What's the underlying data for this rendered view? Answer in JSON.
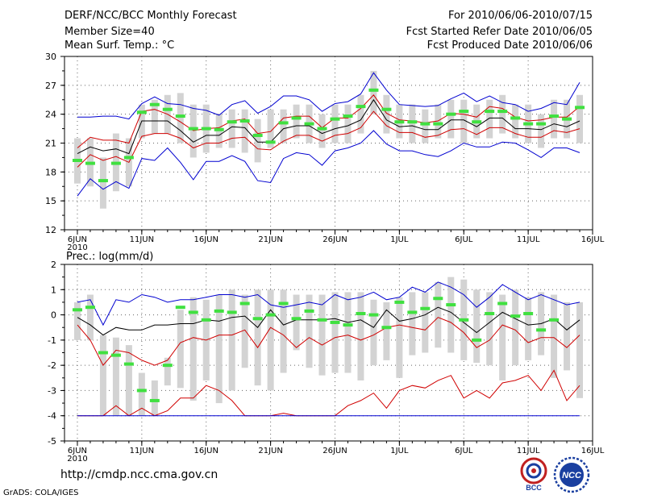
{
  "header": {
    "title": "DERF/NCC/BCC Monthly Forecast",
    "member_size": "Member Size=40",
    "variable1": "Mean Surf. Temp.: °C",
    "period": "For 2010/06/06-2010/07/15",
    "start_date": "Fcst Started Refer Date 2010/06/05",
    "produced_date": "Fcst Produced Date 2010/06/06"
  },
  "footer": {
    "url": "http://cmdp.ncc.cma.gov.cn",
    "grads": "GrADS: COLA/IGES",
    "logo_bcc": "BCC",
    "logo_ncc": "NCC"
  },
  "colors": {
    "box": "#d3d3d3",
    "median": "#40e040",
    "mean": "#000000",
    "inner": "#d00000",
    "outer": "#0000d0",
    "grid": "#666666"
  },
  "chart_data": [
    {
      "type": "box-line",
      "title": "Mean Surf. Temp.: °C",
      "ylabel": "°C",
      "ylim": [
        12,
        30
      ],
      "yticks": [
        12,
        15,
        18,
        21,
        24,
        27,
        30
      ],
      "xticks": [
        {
          "day": 0,
          "label": "6JUN",
          "sub": "2010"
        },
        {
          "day": 5,
          "label": "11JUN"
        },
        {
          "day": 10,
          "label": "16JUN"
        },
        {
          "day": 15,
          "label": "21JUN"
        },
        {
          "day": 20,
          "label": "26JUN"
        },
        {
          "day": 25,
          "label": "1JUL"
        },
        {
          "day": 30,
          "label": "6JUL"
        },
        {
          "day": 35,
          "label": "11JUL"
        },
        {
          "day": 40,
          "label": "16JUL"
        }
      ],
      "box_low": [
        16.8,
        16.5,
        14.2,
        16.0,
        16.5,
        21.5,
        22.0,
        22.0,
        21.0,
        19.5,
        20.0,
        20.5,
        20.5,
        20.0,
        19.0,
        20.5,
        21.0,
        21.5,
        21.0,
        20.5,
        21.0,
        21.0,
        22.0,
        24.0,
        22.0,
        21.5,
        21.0,
        21.0,
        21.5,
        21.5,
        21.0,
        21.5,
        21.5,
        22.0,
        21.5,
        21.0,
        20.5,
        21.5,
        21.5,
        21.0
      ],
      "box_high": [
        21.5,
        21.5,
        19.5,
        22.0,
        21.5,
        25.0,
        25.5,
        26.0,
        26.2,
        25.0,
        25.0,
        24.0,
        24.5,
        24.5,
        23.5,
        24.5,
        24.5,
        25.0,
        25.0,
        24.0,
        25.0,
        25.0,
        26.0,
        28.5,
        26.0,
        25.0,
        25.0,
        24.5,
        25.0,
        25.5,
        25.5,
        25.0,
        25.5,
        26.0,
        25.0,
        25.0,
        24.0,
        25.5,
        25.5,
        26.0
      ],
      "median": [
        19.2,
        18.9,
        17.1,
        18.9,
        19.5,
        24.2,
        25.0,
        24.5,
        23.8,
        22.5,
        22.5,
        22.4,
        23.2,
        23.3,
        21.8,
        21.1,
        23.1,
        23.6,
        23.0,
        22.5,
        23.5,
        23.8,
        24.8,
        26.5,
        24.5,
        23.2,
        23.2,
        23.0,
        23.0,
        24.0,
        24.3,
        23.2,
        24.3,
        24.3,
        23.6,
        23.0,
        23.0,
        23.8,
        23.5,
        24.7
      ],
      "mean": [
        19.9,
        20.6,
        20.2,
        20.4,
        19.9,
        23.3,
        23.3,
        23.3,
        22.3,
        21.1,
        21.8,
        21.8,
        22.7,
        22.6,
        21.1,
        21.1,
        22.5,
        22.8,
        22.8,
        22.0,
        22.5,
        22.8,
        23.4,
        25.5,
        23.4,
        22.7,
        22.8,
        22.4,
        22.4,
        23.4,
        23.4,
        22.7,
        23.6,
        23.6,
        22.5,
        22.5,
        22.4,
        23.0,
        22.7,
        23.3
      ],
      "upper_inner": [
        20.5,
        21.6,
        21.3,
        21.3,
        21.0,
        24.3,
        24.5,
        24.0,
        23.2,
        22.3,
        22.5,
        22.6,
        23.3,
        23.5,
        22.0,
        22.2,
        23.6,
        23.8,
        23.8,
        22.6,
        23.6,
        23.6,
        24.6,
        26.0,
        24.1,
        23.4,
        23.3,
        23.1,
        23.3,
        24.1,
        24.0,
        23.7,
        24.8,
        24.6,
        23.7,
        23.3,
        23.4,
        23.7,
        23.7,
        24.8
      ],
      "lower_inner": [
        18.5,
        19.8,
        19.2,
        19.6,
        19.0,
        21.7,
        22.0,
        22.0,
        21.5,
        20.5,
        21.0,
        21.0,
        21.5,
        21.6,
        20.4,
        20.3,
        21.2,
        21.8,
        21.8,
        21.2,
        21.8,
        22.0,
        22.6,
        24.3,
        22.8,
        22.1,
        22.1,
        21.6,
        21.8,
        22.4,
        22.5,
        21.9,
        22.6,
        22.6,
        22.0,
        21.6,
        21.6,
        22.3,
        22.1,
        22.5
      ],
      "upper_outer": [
        23.7,
        23.7,
        23.8,
        23.8,
        23.5,
        25.1,
        25.8,
        25.1,
        25.0,
        24.6,
        24.4,
        23.9,
        25.0,
        25.4,
        24.1,
        24.8,
        25.9,
        25.9,
        25.5,
        24.3,
        25.1,
        25.3,
        26.1,
        28.3,
        26.5,
        25.0,
        24.9,
        24.8,
        24.9,
        25.6,
        26.2,
        25.3,
        25.9,
        25.2,
        25.0,
        24.3,
        24.6,
        25.2,
        25.0,
        27.3
      ],
      "lower_outer": [
        15.5,
        17.3,
        16.2,
        17.0,
        16.3,
        19.4,
        19.2,
        20.5,
        19.0,
        17.2,
        19.1,
        19.1,
        19.7,
        19.1,
        17.1,
        16.9,
        19.4,
        20.0,
        19.8,
        18.7,
        20.2,
        20.5,
        21.0,
        22.3,
        20.9,
        20.2,
        20.2,
        19.8,
        19.6,
        20.2,
        21.0,
        20.6,
        20.6,
        21.1,
        21.0,
        20.3,
        19.5,
        20.5,
        20.5,
        20.0
      ]
    },
    {
      "type": "box-line",
      "title": "Prec.: log(mm/d)",
      "ylabel": "log(mm/d)",
      "ylim": [
        -5,
        2
      ],
      "yticks": [
        -5,
        -4,
        -3,
        -2,
        -1,
        0,
        1,
        2
      ],
      "xticks": [
        {
          "day": 0,
          "label": "6JUN",
          "sub": "2010"
        },
        {
          "day": 5,
          "label": "11JUN"
        },
        {
          "day": 10,
          "label": "16JUN"
        },
        {
          "day": 15,
          "label": "21JUN"
        },
        {
          "day": 20,
          "label": "26JUN"
        },
        {
          "day": 25,
          "label": "1JUL"
        },
        {
          "day": 30,
          "label": "6JUL"
        },
        {
          "day": 35,
          "label": "11JUL"
        },
        {
          "day": 40,
          "label": "16JUL"
        }
      ],
      "box_low": [
        -1.0,
        -1.0,
        -4.0,
        -4.0,
        -4.0,
        -4.0,
        -4.0,
        -2.8,
        -2.9,
        -3.4,
        -2.6,
        -3.5,
        -3.0,
        -2.1,
        -2.8,
        -3.0,
        -2.3,
        -1.4,
        -2.1,
        -2.4,
        -2.3,
        -2.3,
        -2.6,
        -2.0,
        -1.8,
        -2.5,
        -1.6,
        -1.5,
        -1.3,
        -1.5,
        -1.8,
        -1.9,
        -2.0,
        -2.6,
        -2.0,
        -1.8,
        -1.6,
        -2.5,
        -2.2,
        -3.3
      ],
      "box_high": [
        0.5,
        0.8,
        -0.8,
        -0.9,
        -1.2,
        -2.3,
        -2.6,
        -1.7,
        0.2,
        0.7,
        0.6,
        0.8,
        1.0,
        0.8,
        1.0,
        1.0,
        1.0,
        0.8,
        0.8,
        0.8,
        0.9,
        0.9,
        0.9,
        0.6,
        0.5,
        0.7,
        0.9,
        0.9,
        1.3,
        1.5,
        1.4,
        1.0,
        0.9,
        0.8,
        1.0,
        0.7,
        0.9,
        0.8,
        0.5,
        0.5
      ],
      "median": [
        0.2,
        0.3,
        -1.5,
        -1.6,
        -1.95,
        -3.0,
        -3.4,
        -2.0,
        0.3,
        0.1,
        -0.2,
        0.15,
        0.1,
        0.45,
        -0.15,
        0.0,
        0.45,
        -0.15,
        0.15,
        -0.2,
        -0.3,
        -0.4,
        0.05,
        0.0,
        -0.5,
        0.5,
        0.1,
        0.25,
        0.65,
        0.4,
        -0.2,
        -1.0,
        0.05,
        0.45,
        -0.05,
        0.05,
        -0.6,
        -0.2,
        null,
        null
      ],
      "mean": [
        -0.1,
        -0.4,
        -0.8,
        -0.5,
        -0.6,
        -0.6,
        -0.4,
        -0.4,
        -0.35,
        -0.35,
        -0.2,
        -0.25,
        -0.1,
        -0.05,
        -0.5,
        0.2,
        -0.4,
        -0.2,
        -0.2,
        -0.2,
        -0.15,
        -0.3,
        -0.2,
        -0.5,
        0.2,
        -0.25,
        -0.15,
        0.0,
        0.3,
        0.1,
        -0.3,
        -0.7,
        -0.3,
        0.1,
        -0.15,
        -0.4,
        -0.35,
        -0.15,
        -0.6,
        -0.2
      ],
      "upper_inner": [
        0.5,
        0.6,
        -0.4,
        0.6,
        0.5,
        0.8,
        0.7,
        0.5,
        0.6,
        0.6,
        0.7,
        0.8,
        0.8,
        0.7,
        0.8,
        0.4,
        0.3,
        0.4,
        0.5,
        0.4,
        0.8,
        0.6,
        0.7,
        0.9,
        0.6,
        0.7,
        1.1,
        0.9,
        1.3,
        1.1,
        0.8,
        0.3,
        0.7,
        1.2,
        0.9,
        0.6,
        0.8,
        0.6,
        0.4,
        0.5
      ],
      "lower_inner": [
        -0.4,
        -1.0,
        -2.0,
        -1.4,
        -1.5,
        -1.8,
        -2.0,
        -1.8,
        -1.1,
        -0.9,
        -1.0,
        -0.8,
        -0.8,
        -0.6,
        -1.3,
        -0.5,
        -0.8,
        -1.3,
        -0.9,
        -1.2,
        -0.9,
        -0.8,
        -1.0,
        -0.8,
        -0.5,
        -0.4,
        -0.5,
        -0.6,
        -0.1,
        -0.3,
        -0.7,
        -1.3,
        -1.0,
        -0.4,
        -0.6,
        -1.1,
        -0.9,
        -0.9,
        -1.3,
        -0.8
      ],
      "upper_outer": [
        -4.0,
        -4.0,
        -4.0,
        -3.6,
        -4.0,
        -3.7,
        -4.0,
        -3.8,
        -3.3,
        -3.3,
        -2.8,
        -3.0,
        -3.4,
        -4.0,
        -4.0,
        -4.0,
        -3.9,
        -4.0,
        -4.0,
        -4.0,
        -4.0,
        -3.6,
        -3.4,
        -3.1,
        -3.7,
        -3.0,
        -2.8,
        -2.9,
        -2.6,
        -2.4,
        -3.3,
        -3.0,
        -3.3,
        -2.7,
        -2.6,
        -2.4,
        -3.0,
        -2.2,
        -3.4,
        -2.8
      ],
      "lower_outer": [
        -4.0,
        -4.0,
        -4.0,
        -4.0,
        -4.0,
        -4.0,
        -4.0,
        -4.0,
        -4.0,
        -4.0,
        -4.0,
        -4.0,
        -4.0,
        -4.0,
        -4.0,
        -4.0,
        -4.0,
        -4.0,
        -4.0,
        -4.0,
        -4.0,
        -4.0,
        -4.0,
        -4.0,
        -4.0,
        -4.0,
        -4.0,
        -4.0,
        -4.0,
        -4.0,
        -4.0,
        -4.0,
        -4.0,
        -4.0,
        -4.0,
        -4.0,
        -4.0,
        -4.0,
        -4.0,
        -4.0
      ]
    }
  ]
}
